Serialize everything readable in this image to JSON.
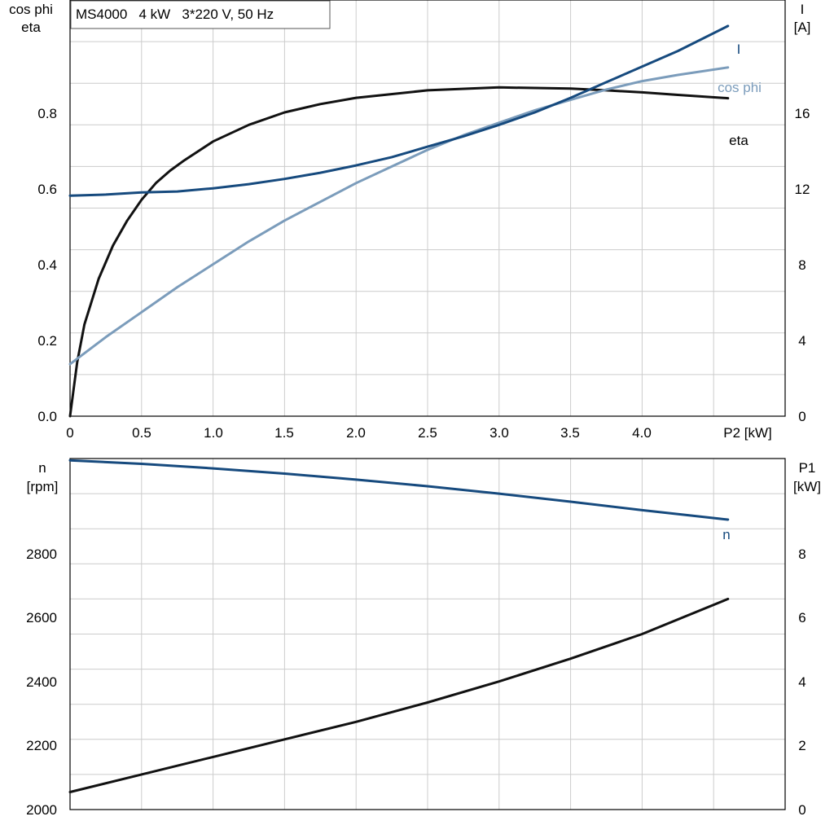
{
  "chart_data": [
    {
      "type": "line",
      "info_box": "MS4000   4 kW   3*220 V, 50 Hz",
      "x_title": "P2 [kW]",
      "x_ticks": [
        "0",
        "0.5",
        "1.0",
        "1.5",
        "2.0",
        "2.5",
        "3.0",
        "3.5",
        "4.0"
      ],
      "xlim": [
        0,
        5.0
      ],
      "y_left_title_1": "cos phi",
      "y_left_title_2": "eta",
      "y_left_ticks": [
        "0.0",
        "0.2",
        "0.4",
        "0.6",
        "0.8"
      ],
      "y_left_lim": [
        0,
        1.0
      ],
      "y_right_title_1": "I",
      "y_right_title_2": "[A]",
      "y_right_ticks": [
        "0",
        "4",
        "8",
        "12",
        "16"
      ],
      "y_right_lim": [
        0,
        20
      ],
      "grid": true,
      "series": [
        {
          "name": "eta",
          "axis": "left",
          "color": "#111111",
          "x": [
            0,
            0.05,
            0.1,
            0.2,
            0.3,
            0.4,
            0.5,
            0.6,
            0.7,
            0.8,
            1.0,
            1.25,
            1.5,
            1.75,
            2.0,
            2.5,
            3.0,
            3.5,
            3.75,
            4.0,
            4.25,
            4.6
          ],
          "y": [
            0,
            0.13,
            0.22,
            0.33,
            0.41,
            0.47,
            0.52,
            0.56,
            0.59,
            0.615,
            0.66,
            0.7,
            0.73,
            0.75,
            0.765,
            0.783,
            0.79,
            0.787,
            0.783,
            0.778,
            0.772,
            0.764
          ]
        },
        {
          "name": "cos phi",
          "axis": "left",
          "color": "#7b9cbb",
          "x": [
            0,
            0.25,
            0.5,
            0.75,
            1.0,
            1.25,
            1.5,
            1.75,
            2.0,
            2.25,
            2.5,
            2.75,
            3.0,
            3.25,
            3.5,
            3.75,
            4.0,
            4.25,
            4.6
          ],
          "y": [
            0.125,
            0.19,
            0.25,
            0.31,
            0.365,
            0.42,
            0.47,
            0.515,
            0.56,
            0.6,
            0.64,
            0.675,
            0.705,
            0.735,
            0.76,
            0.785,
            0.805,
            0.82,
            0.838
          ]
        },
        {
          "name": "I",
          "axis": "right",
          "color": "#164a7e",
          "x": [
            0,
            0.25,
            0.5,
            0.75,
            1.0,
            1.25,
            1.5,
            1.75,
            2.0,
            2.25,
            2.5,
            2.75,
            3.0,
            3.25,
            3.5,
            3.75,
            4.0,
            4.25,
            4.6
          ],
          "y": [
            10.6,
            10.65,
            10.75,
            10.8,
            10.95,
            11.15,
            11.4,
            11.7,
            12.05,
            12.45,
            12.95,
            13.45,
            14.0,
            14.6,
            15.3,
            16.05,
            16.8,
            17.55,
            18.75
          ]
        }
      ]
    },
    {
      "type": "line",
      "xlim": [
        0,
        5.0
      ],
      "y_left_title_1": "n",
      "y_left_title_2": "[rpm]",
      "y_left_ticks": [
        "2000",
        "2200",
        "2400",
        "2600",
        "2800"
      ],
      "y_left_lim": [
        2000,
        3000
      ],
      "y_right_title_1": "P1",
      "y_right_title_2": "[kW]",
      "y_right_ticks": [
        "0",
        "2",
        "4",
        "6",
        "8"
      ],
      "y_right_lim": [
        0,
        10
      ],
      "grid": true,
      "series": [
        {
          "name": "n",
          "axis": "left",
          "color": "#164a7e",
          "x": [
            0,
            0.5,
            1.0,
            1.5,
            2.0,
            2.5,
            3.0,
            3.5,
            4.0,
            4.6
          ],
          "y": [
            2995,
            2985,
            2972,
            2957,
            2940,
            2921,
            2900,
            2877,
            2853,
            2826
          ]
        },
        {
          "name": "P1",
          "axis": "right",
          "color": "#111111",
          "x": [
            0,
            0.5,
            1.0,
            1.5,
            2.0,
            2.5,
            3.0,
            3.5,
            4.0,
            4.6
          ],
          "y": [
            0.5,
            1.0,
            1.5,
            2.0,
            2.5,
            3.05,
            3.65,
            4.3,
            5.0,
            6.0
          ]
        }
      ]
    }
  ]
}
